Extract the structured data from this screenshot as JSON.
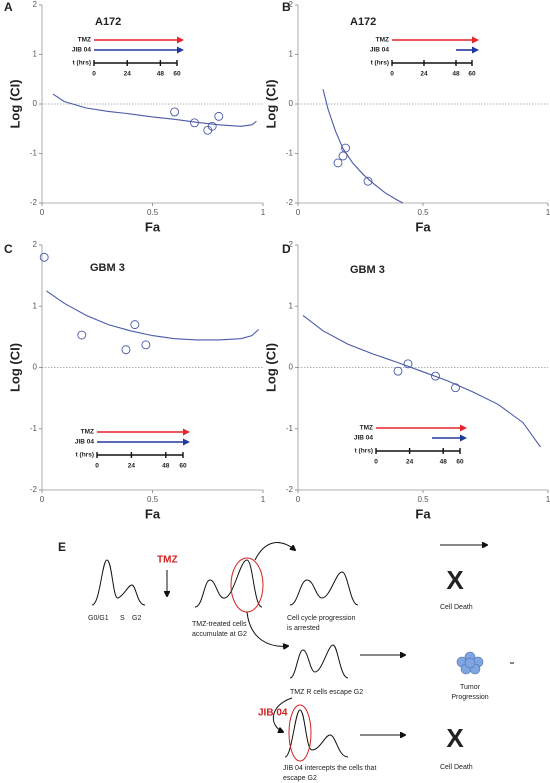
{
  "chart_data": [
    {
      "type": "scatter",
      "panel": "A",
      "title": "A172",
      "xlabel": "Fa",
      "ylabel": "Log (CI)",
      "xlim": [
        0,
        1
      ],
      "ylim": [
        -2,
        2
      ],
      "xticks": [
        0,
        0.5,
        1
      ],
      "yticks": [
        -2,
        -1,
        0,
        1,
        2
      ],
      "points": {
        "color": "#4a5aa8",
        "x": [
          0.6,
          0.69,
          0.75,
          0.77,
          0.8
        ],
        "values": [
          -0.16,
          -0.38,
          -0.53,
          -0.45,
          -0.25
        ]
      },
      "fit": {
        "color": "#4a5aa8",
        "x": [
          0.05,
          0.1,
          0.2,
          0.3,
          0.4,
          0.5,
          0.6,
          0.7,
          0.8,
          0.9,
          0.95,
          0.97
        ],
        "values": [
          0.2,
          0.05,
          -0.08,
          -0.15,
          -0.2,
          -0.26,
          -0.31,
          -0.37,
          -0.42,
          -0.45,
          -0.42,
          -0.35
        ]
      },
      "schedule": {
        "label": "t (hrs)",
        "ticks": [
          0,
          24,
          48,
          60
        ],
        "bars": [
          {
            "name": "TMZ",
            "color": "#e8232a",
            "start": 0,
            "end": 60
          },
          {
            "name": "JIB 04",
            "color": "#1f3a9c",
            "start": 0,
            "end": 60
          }
        ]
      }
    },
    {
      "type": "scatter",
      "panel": "B",
      "title": "A172",
      "xlabel": "Fa",
      "ylabel": "Log (CI)",
      "xlim": [
        0,
        1
      ],
      "ylim": [
        -2,
        2
      ],
      "xticks": [
        0,
        0.5,
        1
      ],
      "yticks": [
        -2,
        -1,
        0,
        1,
        2
      ],
      "points": {
        "color": "#4a5aa8",
        "x": [
          0.16,
          0.18,
          0.19,
          0.28
        ],
        "values": [
          -1.19,
          -1.05,
          -0.89,
          -1.56
        ]
      },
      "fit": {
        "color": "#4a5aa8",
        "x": [
          0.1,
          0.12,
          0.15,
          0.18,
          0.22,
          0.26,
          0.3,
          0.35,
          0.4,
          0.42
        ],
        "values": [
          0.3,
          -0.1,
          -0.55,
          -0.9,
          -1.2,
          -1.42,
          -1.6,
          -1.8,
          -1.95,
          -2
        ]
      },
      "schedule": {
        "label": "t (hrs)",
        "ticks": [
          0,
          24,
          48,
          60
        ],
        "bars": [
          {
            "name": "TMZ",
            "color": "#e8232a",
            "start": 0,
            "end": 60
          },
          {
            "name": "JIB 04",
            "color": "#1f3a9c",
            "start": 48,
            "end": 60
          }
        ]
      }
    },
    {
      "type": "scatter",
      "panel": "C",
      "title": "GBM 3",
      "xlabel": "Fa",
      "ylabel": "Log (CI)",
      "xlim": [
        0,
        1
      ],
      "ylim": [
        -2,
        2
      ],
      "xticks": [
        0,
        0.5,
        1
      ],
      "yticks": [
        -2,
        -1,
        0,
        1,
        2
      ],
      "points": {
        "color": "#4a5aa8",
        "x": [
          0.01,
          0.18,
          0.38,
          0.42,
          0.47
        ],
        "values": [
          1.8,
          0.53,
          0.29,
          0.7,
          0.37
        ]
      },
      "fit": {
        "color": "#4a5aa8",
        "x": [
          0.02,
          0.1,
          0.2,
          0.3,
          0.4,
          0.5,
          0.6,
          0.7,
          0.8,
          0.9,
          0.95,
          0.98
        ],
        "values": [
          1.25,
          1.05,
          0.85,
          0.7,
          0.6,
          0.52,
          0.47,
          0.45,
          0.45,
          0.47,
          0.52,
          0.62
        ]
      },
      "schedule": {
        "label": "t (hrs)",
        "ticks": [
          0,
          24,
          48,
          60
        ],
        "bars": [
          {
            "name": "TMZ",
            "color": "#e8232a",
            "start": 0,
            "end": 60
          },
          {
            "name": "JIB 04",
            "color": "#1f3a9c",
            "start": 0,
            "end": 60
          }
        ]
      }
    },
    {
      "type": "scatter",
      "panel": "D",
      "title": "GBM 3",
      "xlabel": "Fa",
      "ylabel": "Log (CI)",
      "xlim": [
        0,
        1
      ],
      "ylim": [
        -2,
        2
      ],
      "xticks": [
        0,
        0.5,
        1
      ],
      "yticks": [
        -2,
        -1,
        0,
        1,
        2
      ],
      "points": {
        "color": "#4a5aa8",
        "x": [
          0.4,
          0.44,
          0.55,
          0.63
        ],
        "values": [
          -0.06,
          0.06,
          -0.14,
          -0.33
        ]
      },
      "fit": {
        "color": "#4a5aa8",
        "x": [
          0.02,
          0.1,
          0.2,
          0.3,
          0.4,
          0.5,
          0.6,
          0.7,
          0.8,
          0.9,
          0.97
        ],
        "values": [
          0.85,
          0.6,
          0.38,
          0.22,
          0.08,
          -0.07,
          -0.22,
          -0.4,
          -0.6,
          -0.9,
          -1.3
        ]
      },
      "schedule": {
        "label": "t (hrs)",
        "ticks": [
          0,
          24,
          48,
          60
        ],
        "bars": [
          {
            "name": "TMZ",
            "color": "#e8232a",
            "start": 0,
            "end": 60
          },
          {
            "name": "JIB 04",
            "color": "#1f3a9c",
            "start": 40,
            "end": 60
          }
        ]
      }
    }
  ],
  "diagram": {
    "panel": "E",
    "treatment_1": "TMZ",
    "phases": [
      "G0/G1",
      "S",
      "G2"
    ],
    "accumulate": [
      "TMZ-treated cells",
      "accumulate at G2"
    ],
    "arrested": [
      "Cell cycle progression",
      "is arrested"
    ],
    "death_1": "Cell Death",
    "x_1": "X",
    "escape": "TMZ R cells escape G2",
    "tumor": [
      "Tumor",
      "Progression"
    ],
    "treatment_2": "JIB 04",
    "intercept": [
      "JIB 04 intercepts the cells that",
      "escape G2"
    ],
    "death_2": "Cell Death",
    "x_2": "X"
  }
}
